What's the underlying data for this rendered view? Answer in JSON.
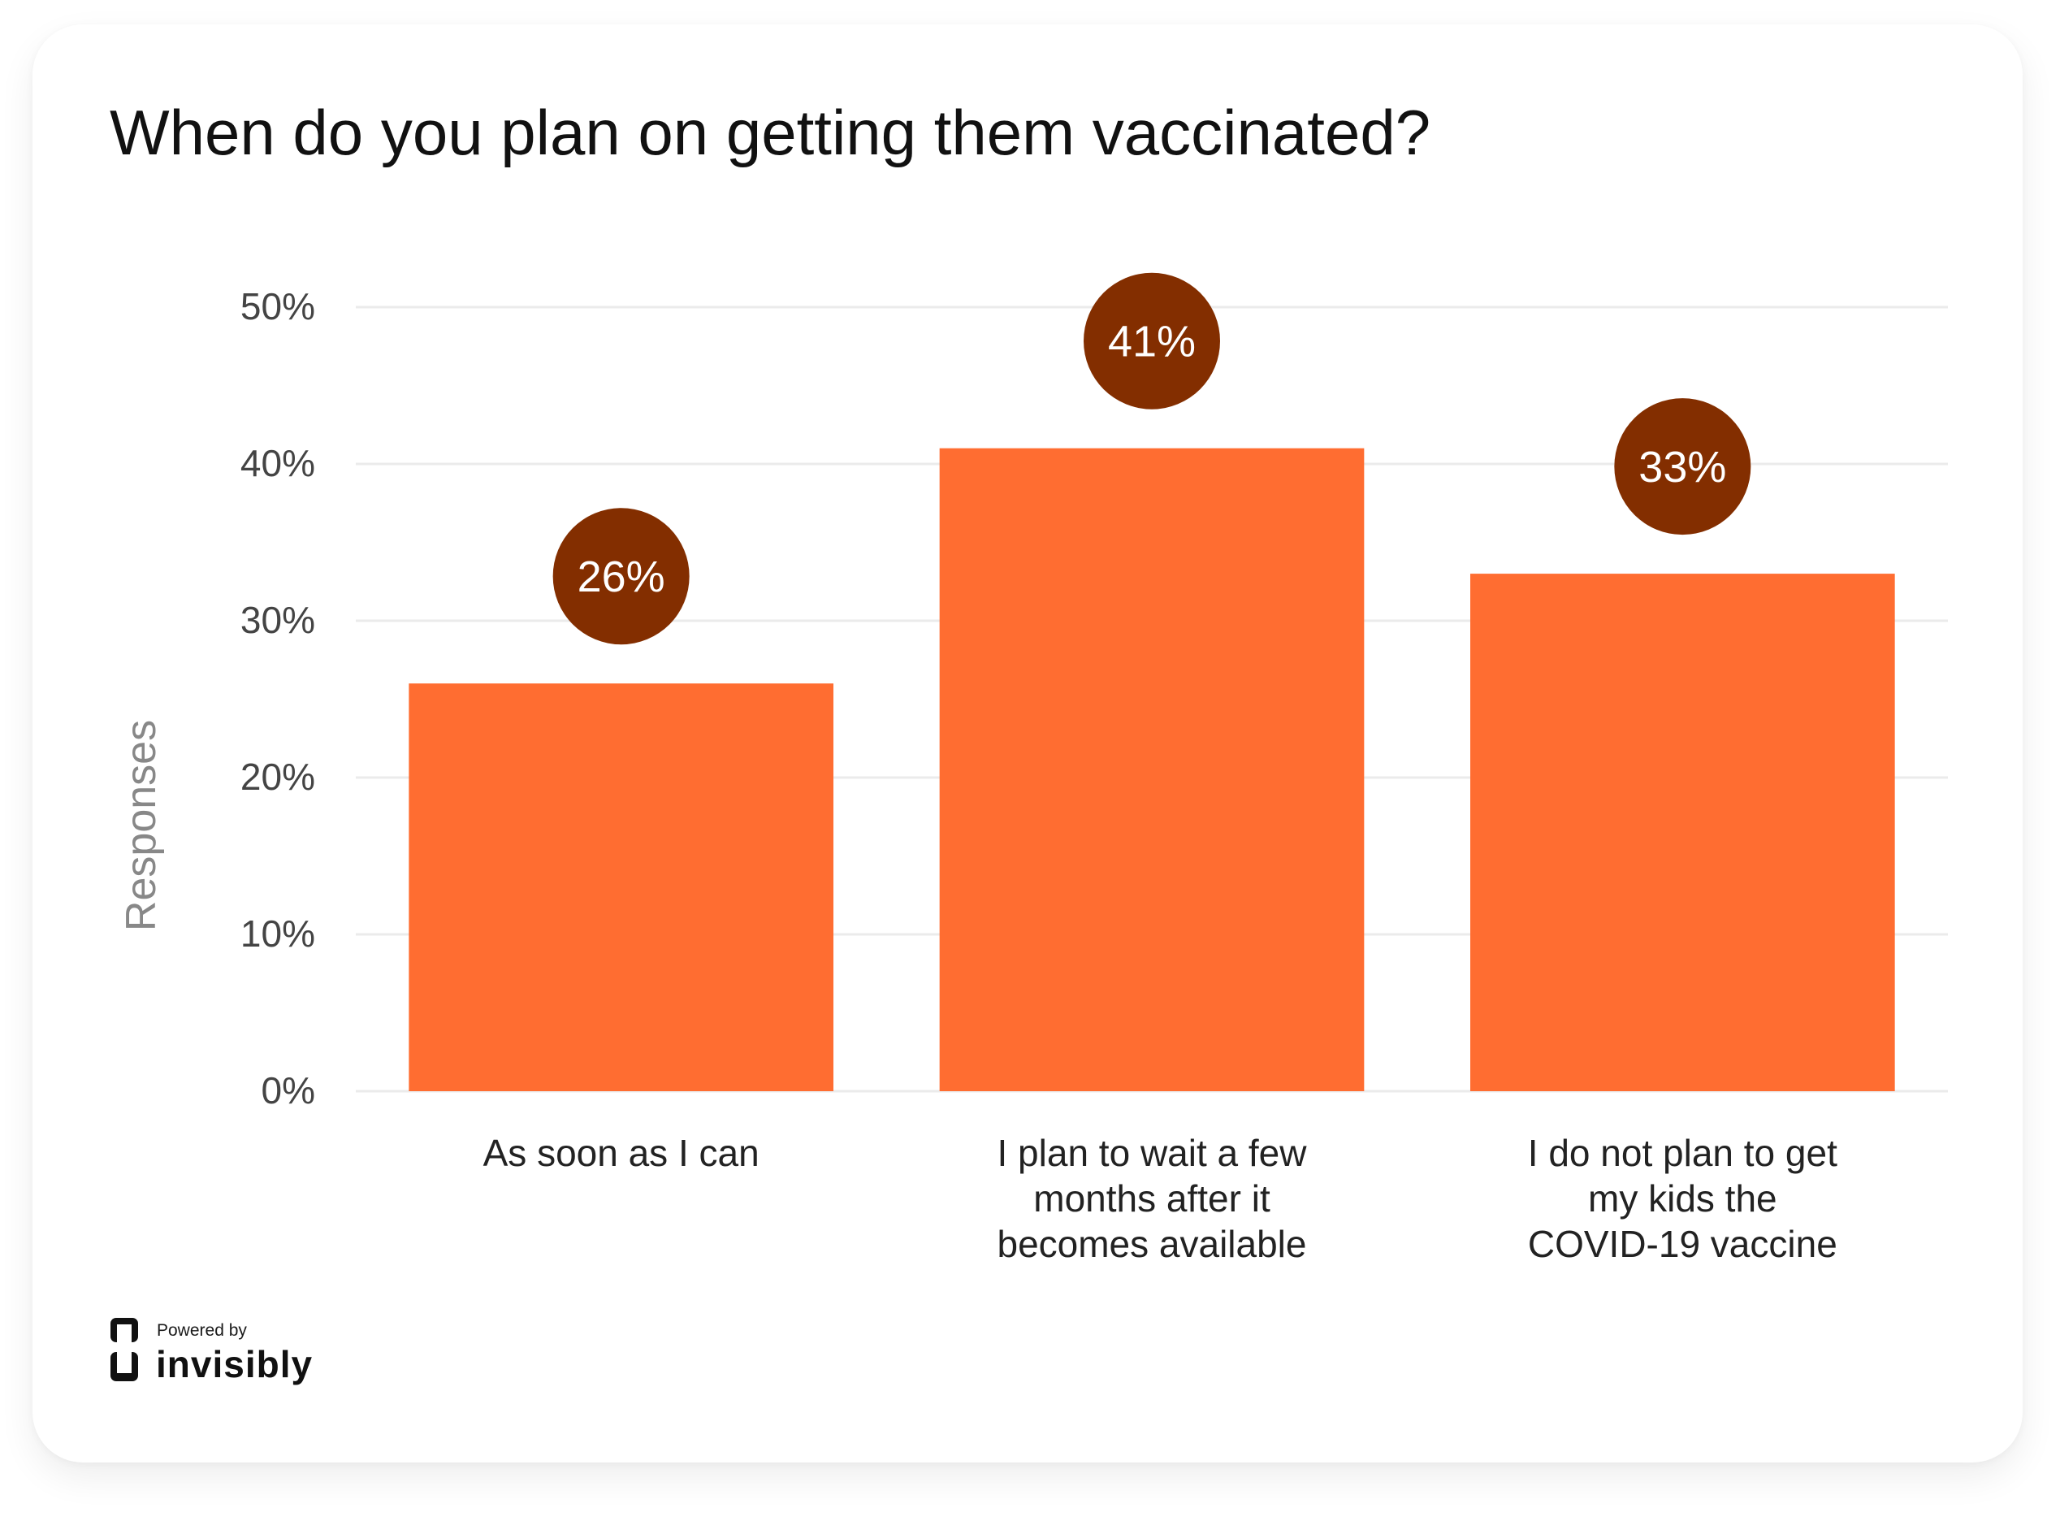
{
  "title": "When do you plan on getting them vaccinated?",
  "branding": {
    "powered_by": "Powered by",
    "brand_name": "invisibly"
  },
  "colors": {
    "bar": "#ff6d31",
    "badge": "#832e00",
    "badge_text": "#ffffff",
    "grid": "#ebebeb",
    "tick_text": "#444444",
    "ylabel_text": "#888888"
  },
  "chart_data": {
    "type": "bar",
    "title": "When do you plan on getting them vaccinated?",
    "xlabel": "",
    "ylabel": "Responses",
    "ylim": [
      0,
      50
    ],
    "yticks": [
      0,
      10,
      20,
      30,
      40,
      50
    ],
    "ytick_labels": [
      "0%",
      "10%",
      "20%",
      "30%",
      "40%",
      "50%"
    ],
    "grid": true,
    "categories": [
      [
        "As soon as I can"
      ],
      [
        "I plan to wait a few",
        "months after it",
        "becomes available"
      ],
      [
        "I do not plan to get",
        "my kids the",
        "COVID-19 vaccine"
      ]
    ],
    "values": [
      26,
      41,
      33
    ],
    "value_labels": [
      "26%",
      "41%",
      "33%"
    ]
  }
}
